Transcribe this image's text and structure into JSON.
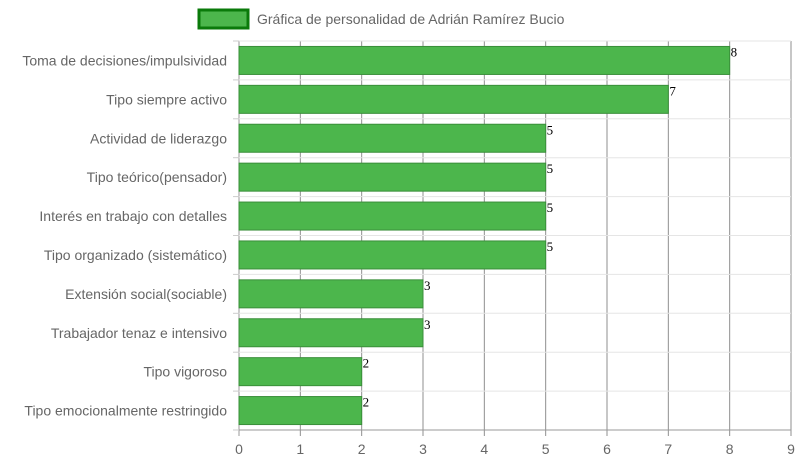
{
  "chart_data": {
    "type": "bar",
    "orientation": "horizontal",
    "legend": {
      "position": "top",
      "entries": [
        "Gráfica de personalidad de Adrián Ramírez Bucio"
      ]
    },
    "categories": [
      "Toma de decisiones/impulsividad",
      "Tipo siempre activo",
      "Actividad de liderazgo",
      "Tipo teórico(pensador)",
      "Interés en trabajo con detalles",
      "Tipo organizado (sistemático)",
      "Extensión social(sociable)",
      "Trabajador tenaz e intensivo",
      "Tipo vigoroso",
      "Tipo emocionalmente restringido"
    ],
    "series": [
      {
        "name": "Gráfica de personalidad de Adrián Ramírez Bucio",
        "values": [
          8,
          7,
          5,
          5,
          5,
          5,
          3,
          3,
          2,
          2
        ],
        "color": "#4CB64C",
        "border_color": "#0A7A0A"
      }
    ],
    "xlim": [
      0,
      9
    ],
    "x_ticks": [
      "0",
      "1",
      "2",
      "3",
      "4",
      "5",
      "6",
      "7",
      "8",
      "9"
    ],
    "value_labels": [
      "8",
      "7",
      "5",
      "5",
      "5",
      "5",
      "3",
      "3",
      "2",
      "2"
    ],
    "grid": true
  }
}
